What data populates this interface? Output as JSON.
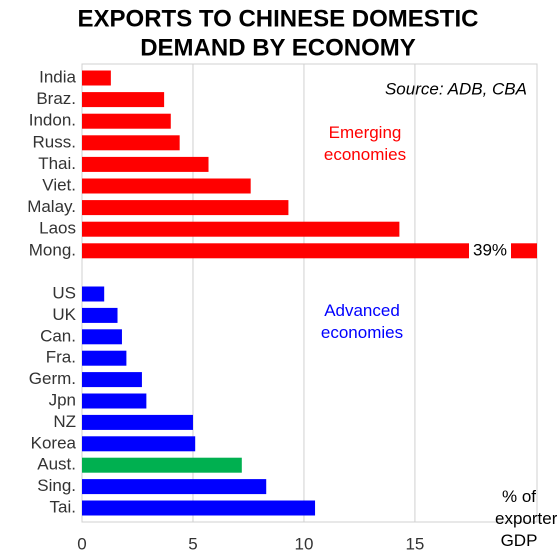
{
  "chart_data": {
    "type": "bar",
    "orientation": "horizontal",
    "title": [
      "EXPORTS TO CHINESE DOMESTIC",
      "DEMAND BY ECONOMY"
    ],
    "source": "Source: ADB, CBA",
    "x_label": "% of exporter GDP",
    "xlim": [
      0,
      20.5
    ],
    "xticks": [
      0,
      5,
      10,
      15
    ],
    "grid": true,
    "series": [
      {
        "name": "Emerging economies",
        "color": "#ff0000",
        "categories": [
          "India",
          "Braz.",
          "Indon.",
          "Russ.",
          "Thai.",
          "Viet.",
          "Malay.",
          "Laos",
          "Mong."
        ],
        "values": [
          1.3,
          3.7,
          4.0,
          4.4,
          5.7,
          7.6,
          9.3,
          14.3,
          39
        ],
        "value_labels": [
          null,
          null,
          null,
          null,
          null,
          null,
          null,
          null,
          "39%"
        ]
      },
      {
        "name": "Advanced economies",
        "color": "#0000ff",
        "categories": [
          "US",
          "UK",
          "Can.",
          "Fra.",
          "Germ.",
          "Jpn",
          "NZ",
          "Korea",
          "Aust.",
          "Sing.",
          "Tai."
        ],
        "values": [
          1.0,
          1.6,
          1.8,
          2.0,
          2.7,
          2.9,
          5.0,
          5.1,
          7.2,
          8.3,
          10.5
        ],
        "colors": [
          "#0000ff",
          "#0000ff",
          "#0000ff",
          "#0000ff",
          "#0000ff",
          "#0000ff",
          "#0000ff",
          "#0000ff",
          "#00b050",
          "#0000ff",
          "#0000ff"
        ]
      }
    ]
  }
}
